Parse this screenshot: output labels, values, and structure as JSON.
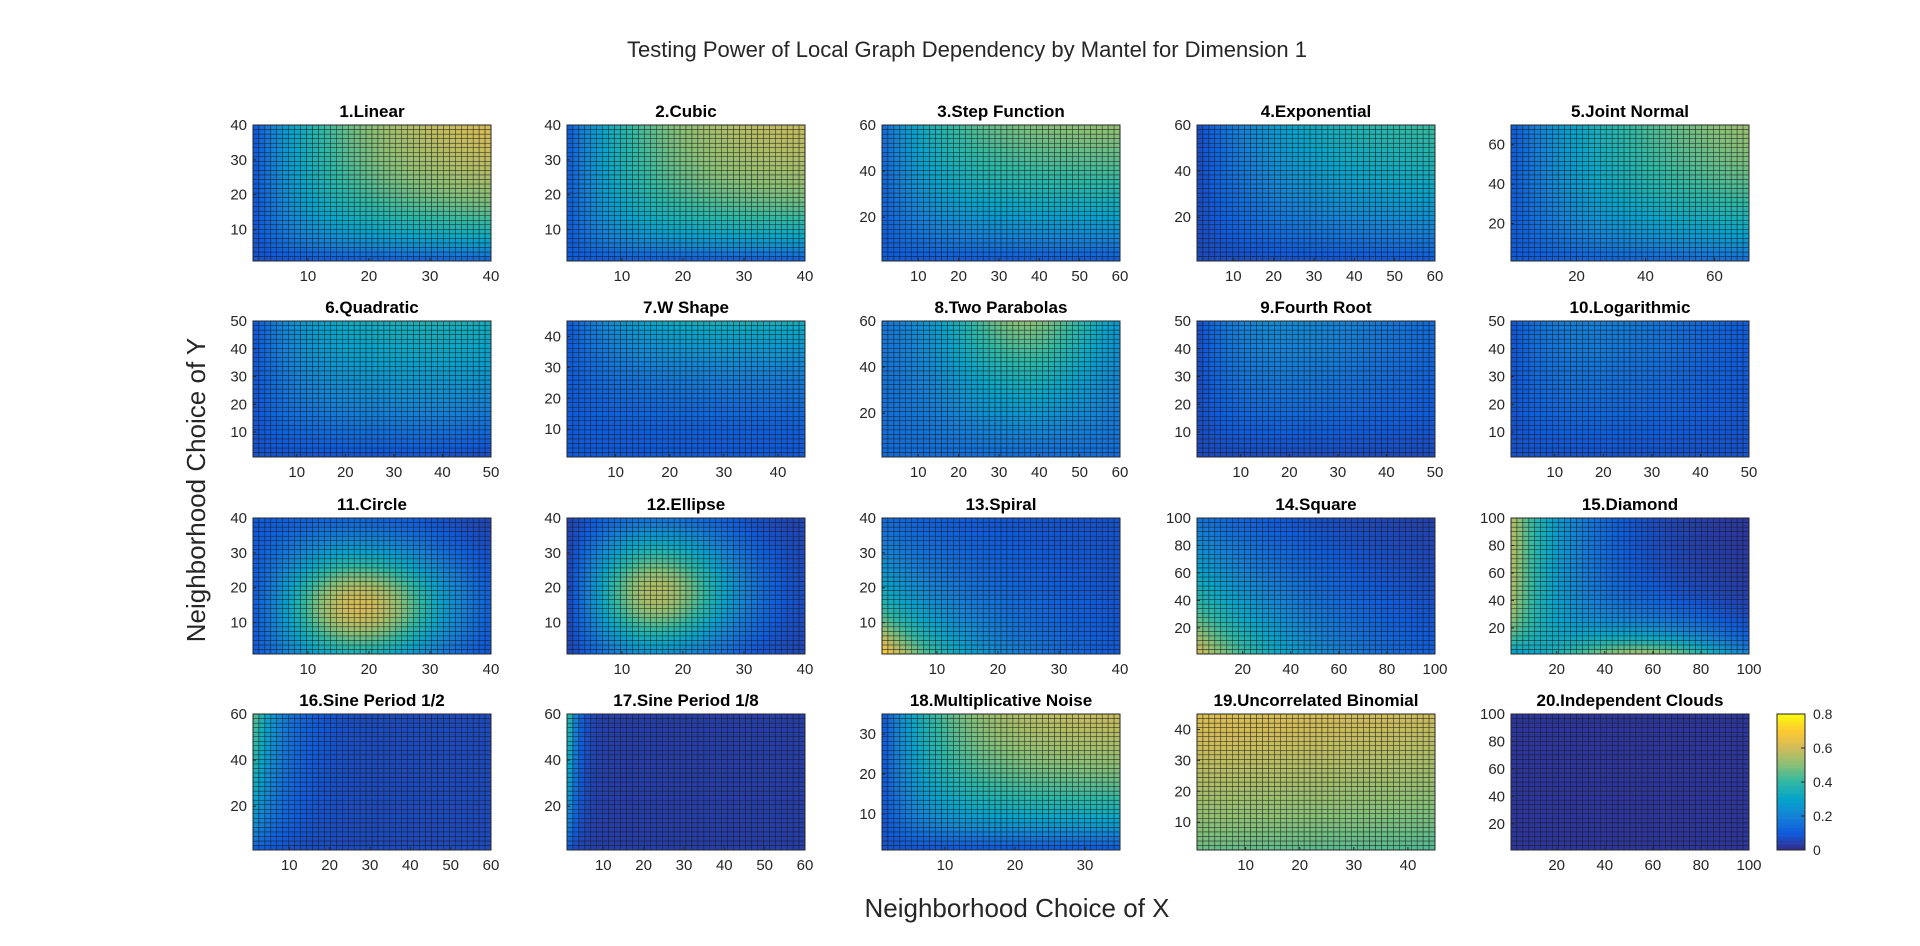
{
  "figure": {
    "title": "Testing Power of Local Graph Dependency by Mantel for Dimension 1",
    "xlabel": "Neighborhood Choice of X",
    "ylabel": "Neighborhood Choice of Y"
  },
  "colorbar": {
    "range": [
      0,
      0.8
    ],
    "ticks": [
      "0",
      "0.2",
      "0.4",
      "0.6",
      "0.8"
    ],
    "colormap": "parula",
    "colors": [
      "#352a87",
      "#0f5cdd",
      "#1481d6",
      "#06a4ca",
      "#2eb7a4",
      "#87bf77",
      "#d1bb59",
      "#fec832",
      "#f9fb0e"
    ]
  },
  "chart_data": [
    {
      "type": "heatmap",
      "title": "1.Linear",
      "xlim": [
        1,
        40
      ],
      "ylim": [
        1,
        40
      ],
      "xticks": [
        10,
        20,
        30,
        40
      ],
      "yticks": [
        10,
        20,
        30,
        40
      ]
    },
    {
      "type": "heatmap",
      "title": "2.Cubic",
      "xlim": [
        1,
        40
      ],
      "ylim": [
        1,
        40
      ],
      "xticks": [
        10,
        20,
        30,
        40
      ],
      "yticks": [
        10,
        20,
        30,
        40
      ]
    },
    {
      "type": "heatmap",
      "title": "3.Step Function",
      "xlim": [
        1,
        60
      ],
      "ylim": [
        1,
        60
      ],
      "xticks": [
        10,
        20,
        30,
        40,
        50,
        60
      ],
      "yticks": [
        20,
        40,
        60
      ]
    },
    {
      "type": "heatmap",
      "title": "4.Exponential",
      "xlim": [
        1,
        60
      ],
      "ylim": [
        1,
        60
      ],
      "xticks": [
        10,
        20,
        30,
        40,
        50,
        60
      ],
      "yticks": [
        20,
        40,
        60
      ]
    },
    {
      "type": "heatmap",
      "title": "5.Joint Normal",
      "xlim": [
        1,
        70
      ],
      "ylim": [
        1,
        70
      ],
      "xticks": [
        20,
        40,
        60
      ],
      "yticks": [
        20,
        40,
        60
      ]
    },
    {
      "type": "heatmap",
      "title": "6.Quadratic",
      "xlim": [
        1,
        50
      ],
      "ylim": [
        1,
        50
      ],
      "xticks": [
        10,
        20,
        30,
        40,
        50
      ],
      "yticks": [
        10,
        20,
        30,
        40,
        50
      ]
    },
    {
      "type": "heatmap",
      "title": "7.W Shape",
      "xlim": [
        1,
        45
      ],
      "ylim": [
        1,
        45
      ],
      "xticks": [
        10,
        20,
        30,
        40
      ],
      "yticks": [
        10,
        20,
        30,
        40
      ]
    },
    {
      "type": "heatmap",
      "title": "8.Two Parabolas",
      "xlim": [
        1,
        60
      ],
      "ylim": [
        1,
        60
      ],
      "xticks": [
        10,
        20,
        30,
        40,
        50,
        60
      ],
      "yticks": [
        20,
        40,
        60
      ]
    },
    {
      "type": "heatmap",
      "title": "9.Fourth Root",
      "xlim": [
        1,
        50
      ],
      "ylim": [
        1,
        50
      ],
      "xticks": [
        10,
        20,
        30,
        40,
        50
      ],
      "yticks": [
        10,
        20,
        30,
        40,
        50
      ]
    },
    {
      "type": "heatmap",
      "title": "10.Logarithmic",
      "xlim": [
        1,
        50
      ],
      "ylim": [
        1,
        50
      ],
      "xticks": [
        10,
        20,
        30,
        40,
        50
      ],
      "yticks": [
        10,
        20,
        30,
        40,
        50
      ]
    },
    {
      "type": "heatmap",
      "title": "11.Circle",
      "xlim": [
        1,
        40
      ],
      "ylim": [
        1,
        40
      ],
      "xticks": [
        10,
        20,
        30,
        40
      ],
      "yticks": [
        10,
        20,
        30,
        40
      ]
    },
    {
      "type": "heatmap",
      "title": "12.Ellipse",
      "xlim": [
        1,
        40
      ],
      "ylim": [
        1,
        40
      ],
      "xticks": [
        10,
        20,
        30,
        40
      ],
      "yticks": [
        10,
        20,
        30,
        40
      ]
    },
    {
      "type": "heatmap",
      "title": "13.Spiral",
      "xlim": [
        1,
        40
      ],
      "ylim": [
        1,
        40
      ],
      "xticks": [
        10,
        20,
        30,
        40
      ],
      "yticks": [
        10,
        20,
        30,
        40
      ]
    },
    {
      "type": "heatmap",
      "title": "14.Square",
      "xlim": [
        1,
        100
      ],
      "ylim": [
        1,
        100
      ],
      "xticks": [
        20,
        40,
        60,
        80,
        100
      ],
      "yticks": [
        20,
        40,
        60,
        80,
        100
      ]
    },
    {
      "type": "heatmap",
      "title": "15.Diamond",
      "xlim": [
        1,
        100
      ],
      "ylim": [
        1,
        100
      ],
      "xticks": [
        20,
        40,
        60,
        80,
        100
      ],
      "yticks": [
        20,
        40,
        60,
        80,
        100
      ]
    },
    {
      "type": "heatmap",
      "title": "16.Sine Period 1/2",
      "xlim": [
        1,
        60
      ],
      "ylim": [
        1,
        60
      ],
      "xticks": [
        10,
        20,
        30,
        40,
        50,
        60
      ],
      "yticks": [
        20,
        40,
        60
      ]
    },
    {
      "type": "heatmap",
      "title": "17.Sine Period 1/8",
      "xlim": [
        1,
        60
      ],
      "ylim": [
        1,
        60
      ],
      "xticks": [
        10,
        20,
        30,
        40,
        50,
        60
      ],
      "yticks": [
        20,
        40,
        60
      ]
    },
    {
      "type": "heatmap",
      "title": "18.Multiplicative Noise",
      "xlim": [
        1,
        35
      ],
      "ylim": [
        1,
        35
      ],
      "xticks": [
        10,
        20,
        30
      ],
      "yticks": [
        10,
        20,
        30
      ]
    },
    {
      "type": "heatmap",
      "title": "19.Uncorrelated Binomial",
      "xlim": [
        1,
        45
      ],
      "ylim": [
        1,
        45
      ],
      "xticks": [
        10,
        20,
        30,
        40
      ],
      "yticks": [
        10,
        20,
        30,
        40
      ]
    },
    {
      "type": "heatmap",
      "title": "20.Independent Clouds",
      "xlim": [
        1,
        100
      ],
      "ylim": [
        1,
        100
      ],
      "xticks": [
        20,
        40,
        60,
        80,
        100
      ],
      "yticks": [
        20,
        40,
        60,
        80,
        100
      ]
    }
  ]
}
